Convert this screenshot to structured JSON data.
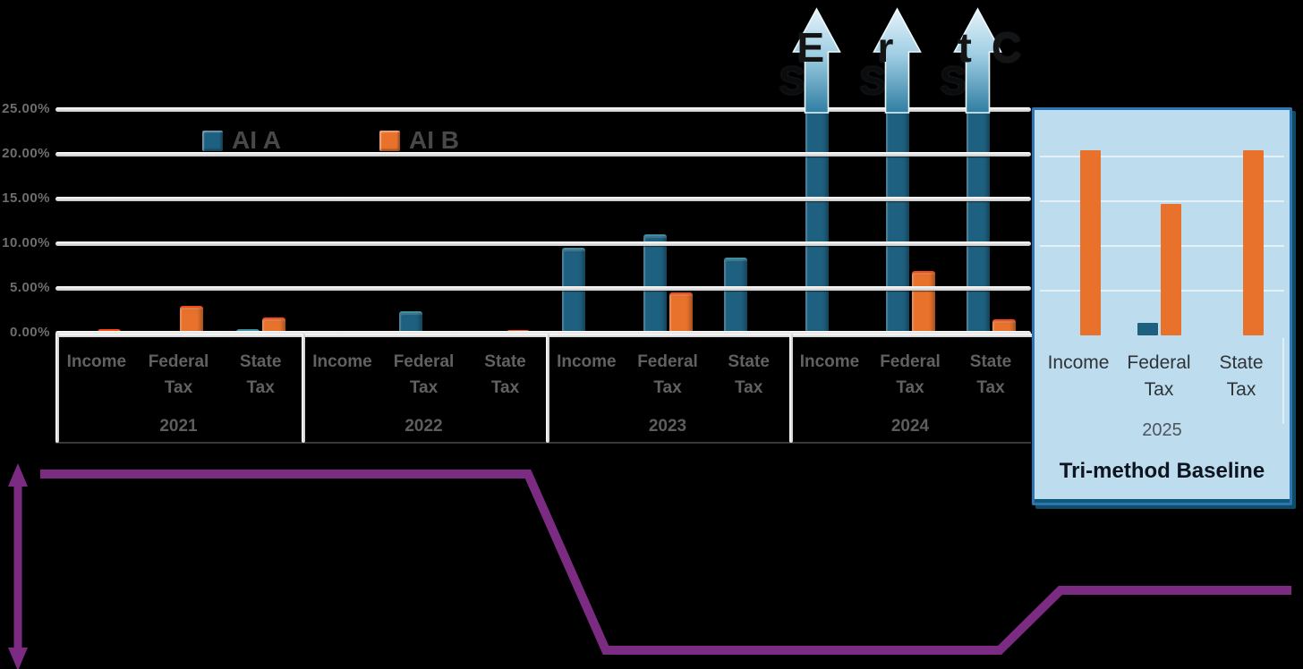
{
  "background_color": "#000000",
  "legend": {
    "items": [
      {
        "label": "AI A",
        "color": "#1E607F"
      },
      {
        "label": "AI B",
        "color": "#E8722C"
      }
    ]
  },
  "overflow_fragments": {
    "upper": [
      "E",
      "r",
      "tC"
    ],
    "lower": [
      "S",
      "S",
      "S"
    ],
    "note": "partially obscured black text behind the three overflow arrows"
  },
  "callout": {
    "title": "Tri-method Baseline",
    "year_label": "2025",
    "fill_color": "#BDDDEE",
    "border_color": "#2E74B5"
  },
  "annotation_line": {
    "color": "#7C2B82",
    "shape": "double-headed vertical arrow at left, then stepped horizontal trend line low-high"
  },
  "chart_data": {
    "type": "bar",
    "title": "",
    "unit": "percent",
    "grid": "horizontal",
    "legend_position": "top-left-inside",
    "ylim": [
      0,
      25
    ],
    "y_axis_ticks": [
      "25.00%",
      "20.00%",
      "15.00%",
      "10.00%",
      "5.00%",
      "0.00%"
    ],
    "group_labels": [
      "2021",
      "2022",
      "2023",
      "2024",
      "2025"
    ],
    "category_labels": [
      "Income",
      "Federal Tax",
      "State Tax"
    ],
    "series": [
      {
        "name": "AI A",
        "color": "#1E607F",
        "values_by_year": {
          "2021": [
            0,
            0,
            0.4
          ],
          "2022": [
            0,
            2.4,
            0
          ],
          "2023": [
            9.5,
            11.0,
            8.4
          ],
          "2024": [
            26.5,
            26.5,
            26.5
          ],
          "2025": [
            0,
            1.4,
            0
          ]
        },
        "off_chart_years": [
          "2024"
        ]
      },
      {
        "name": "AI B",
        "color": "#E8722C",
        "values_by_year": {
          "2021": [
            0.4,
            3.0,
            1.7
          ],
          "2022": [
            0,
            0,
            0.3
          ],
          "2023": [
            0.2,
            4.5,
            0
          ],
          "2024": [
            0,
            6.9,
            1.5
          ],
          "2025": [
            20.7,
            14.7,
            20.7
          ]
        },
        "off_chart_years": []
      }
    ],
    "annotations": {
      "off_chart_arrows": {
        "year": "2024",
        "series": "AI A",
        "note": "bars exceed axis maximum, shown with upward overflow arrows"
      },
      "callout_box": {
        "year": "2025",
        "label": "Tri-method Baseline"
      }
    }
  }
}
